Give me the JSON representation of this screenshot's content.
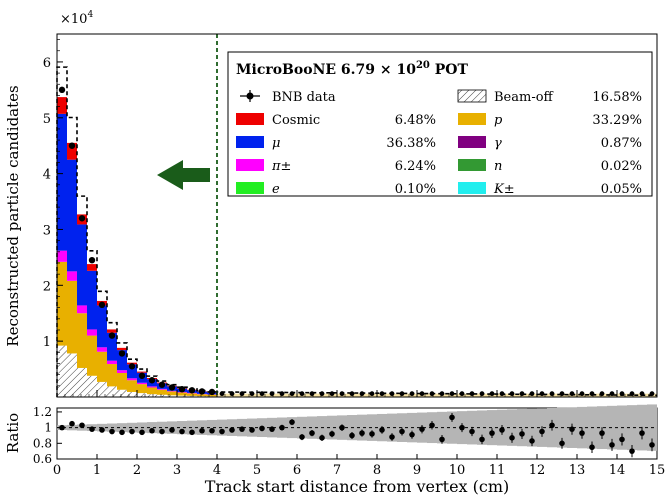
{
  "chart_data": {
    "type": "bar",
    "multiplier_label": "×10",
    "multiplier_exp": "4",
    "xlabel": "Track start distance from vertex (cm)",
    "ylabel": "Reconstructed particle candidates",
    "ratio_ylabel": "Ratio",
    "xlim": [
      0,
      15
    ],
    "ylim": [
      0,
      6.5
    ],
    "ratio_ylim": [
      0.6,
      1.25
    ],
    "xticks": [
      "0",
      "1",
      "2",
      "3",
      "4",
      "5",
      "6",
      "7",
      "8",
      "9",
      "10",
      "11",
      "12",
      "13",
      "14",
      "15"
    ],
    "yticks": [
      "1",
      "2",
      "3",
      "4",
      "5",
      "6"
    ],
    "ratio_yticks": [
      "0.6",
      "0.8",
      "1",
      "1.2"
    ],
    "cut_line_x": 4,
    "bin_width": 0.25,
    "legend": {
      "title": "MicroBooNE 6.79 × 10",
      "title_exp": "20",
      "title_suffix": "POT",
      "entries": [
        {
          "label": "BNB data",
          "symbol": "data",
          "pct": ""
        },
        {
          "label": "Beam-off",
          "symbol": "hatch",
          "pct": "16.58%"
        },
        {
          "label": "Cosmic",
          "symbol": "box",
          "color": "#ee0000",
          "pct": "6.48%"
        },
        {
          "label": "p",
          "symbol": "box",
          "color": "#e8b000",
          "pct": "33.29%"
        },
        {
          "label": "μ",
          "symbol": "box",
          "color": "#0022ee",
          "pct": "36.38%"
        },
        {
          "label": "γ",
          "symbol": "box",
          "color": "#800080",
          "pct": "0.87%"
        },
        {
          "label": "π±",
          "symbol": "box",
          "color": "#ff00ff",
          "pct": "6.24%"
        },
        {
          "label": "n",
          "symbol": "box",
          "color": "#339933",
          "pct": "0.02%"
        },
        {
          "label": "e",
          "symbol": "box",
          "color": "#22ee22",
          "pct": "0.10%"
        },
        {
          "label": "K±",
          "symbol": "box",
          "color": "#22eeee",
          "pct": "0.05%"
        }
      ]
    },
    "series": [
      {
        "name": "Beam-off",
        "color": "#ffffff",
        "values": [
          0.92,
          0.78,
          0.52,
          0.38,
          0.27,
          0.19,
          0.13,
          0.09,
          0.07,
          0.05,
          0.04,
          0.03,
          0.025,
          0.02,
          0.015,
          0.012
        ]
      },
      {
        "name": "p",
        "color": "#e8b000",
        "values": [
          1.5,
          1.3,
          0.98,
          0.72,
          0.54,
          0.4,
          0.3,
          0.21,
          0.16,
          0.12,
          0.09,
          0.07,
          0.055,
          0.045,
          0.035,
          0.03
        ]
      },
      {
        "name": "π±",
        "color": "#ff00ff",
        "values": [
          0.2,
          0.17,
          0.14,
          0.11,
          0.08,
          0.06,
          0.05,
          0.035,
          0.025,
          0.02,
          0.015,
          0.01,
          0.01,
          0.008,
          0.006,
          0.005
        ]
      },
      {
        "name": "μ",
        "color": "#0022ee",
        "values": [
          2.45,
          2.0,
          1.45,
          1.05,
          0.75,
          0.5,
          0.36,
          0.25,
          0.18,
          0.13,
          0.1,
          0.08,
          0.06,
          0.05,
          0.04,
          0.03
        ]
      },
      {
        "name": "Cosmic",
        "color": "#ee0000",
        "values": [
          0.3,
          0.3,
          0.18,
          0.12,
          0.08,
          0.06,
          0.04,
          0.03,
          0.02,
          0.02,
          0.015,
          0.01,
          0.01,
          0.008,
          0.006,
          0.005
        ]
      }
    ],
    "data_points": {
      "name": "BNB data",
      "x": [
        0.125,
        0.375,
        0.625,
        0.875,
        1.125,
        1.375,
        1.625,
        1.875,
        2.125,
        2.375,
        2.625,
        2.875,
        3.125,
        3.375,
        3.625,
        3.875
      ],
      "y": [
        5.5,
        4.5,
        3.2,
        2.45,
        1.65,
        1.1,
        0.78,
        0.55,
        0.38,
        0.3,
        0.22,
        0.17,
        0.14,
        0.12,
        0.1,
        0.09
      ]
    },
    "ratio_points": {
      "x": [
        0.125,
        0.375,
        0.625,
        0.875,
        1.125,
        1.375,
        1.625,
        1.875,
        2.125,
        2.375,
        2.625,
        2.875,
        3.125,
        3.375,
        3.625,
        3.875,
        4.125,
        4.375,
        4.625,
        4.875,
        5.125,
        5.375,
        5.625,
        5.875,
        6.125,
        6.375,
        6.625,
        6.875,
        7.125,
        7.375,
        7.625,
        7.875,
        8.125,
        8.375,
        8.625,
        8.875,
        9.125,
        9.375,
        9.625,
        9.875,
        10.125,
        10.375,
        10.625,
        10.875,
        11.125,
        11.375,
        11.625,
        11.875,
        12.125,
        12.375,
        12.625,
        12.875,
        13.125,
        13.375,
        13.625,
        13.875,
        14.125,
        14.375,
        14.625,
        14.875
      ],
      "y": [
        1.0,
        1.05,
        1.03,
        0.98,
        0.97,
        0.95,
        0.94,
        0.95,
        0.94,
        0.96,
        0.95,
        0.97,
        0.95,
        0.94,
        0.96,
        0.96,
        0.95,
        0.97,
        0.98,
        0.97,
        0.99,
        0.98,
        1.0,
        1.07,
        0.88,
        0.93,
        0.87,
        0.92,
        1.0,
        0.9,
        0.93,
        0.92,
        0.97,
        0.88,
        0.95,
        0.91,
        0.98,
        1.03,
        0.85,
        1.13,
        1.0,
        0.95,
        0.85,
        0.93,
        0.97,
        0.87,
        0.92,
        0.83,
        0.95,
        1.03,
        0.8,
        0.98,
        0.93,
        0.75,
        0.93,
        0.78,
        0.85,
        0.7,
        0.93,
        0.78
      ]
    }
  }
}
